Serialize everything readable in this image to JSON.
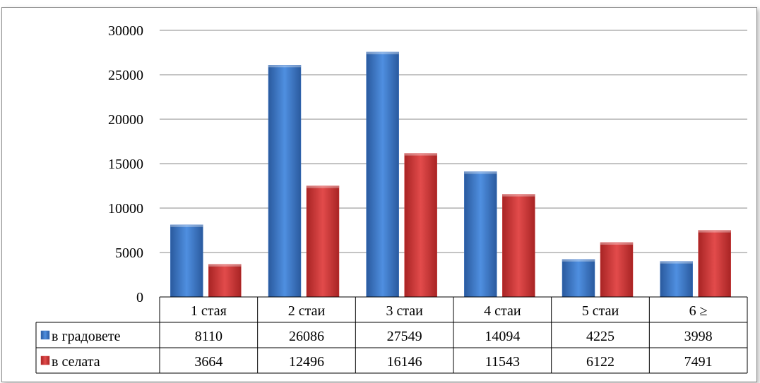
{
  "chart_data": {
    "type": "bar",
    "categories": [
      "1 стая",
      "2 стаи",
      "3 стаи",
      "4 стаи",
      "5 стаи",
      "6 ≥"
    ],
    "series": [
      {
        "name": "в градовете",
        "values": [
          8110,
          26086,
          27549,
          14094,
          4225,
          3998
        ],
        "color": "#3a72c4"
      },
      {
        "name": "в селата",
        "values": [
          3664,
          12496,
          16146,
          11543,
          6122,
          7491
        ],
        "color": "#cf3737"
      }
    ],
    "ylim": [
      0,
      30000
    ],
    "yticks": [
      "0",
      "5000",
      "10000",
      "15000",
      "20000",
      "25000",
      "30000"
    ],
    "grid": true,
    "legend": "data-table"
  }
}
